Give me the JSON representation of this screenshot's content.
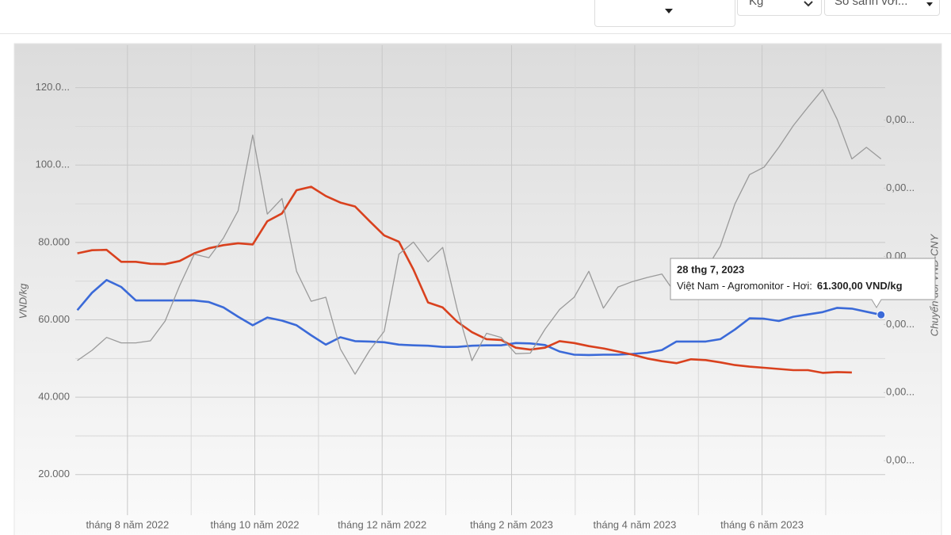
{
  "controls": {
    "unit": "Kg",
    "compare": "So sánh với..."
  },
  "chart_data": {
    "type": "line",
    "ylabel": "VND/kg",
    "y2label": "Chuyển đổi VND-CNY",
    "x": [
      "2022-07-08",
      "2022-07-15",
      "2022-07-22",
      "2022-07-29",
      "2022-08-05",
      "2022-08-12",
      "2022-08-19",
      "2022-08-26",
      "2022-09-02",
      "2022-09-09",
      "2022-09-16",
      "2022-09-23",
      "2022-09-30",
      "2022-10-07",
      "2022-10-14",
      "2022-10-21",
      "2022-10-28",
      "2022-11-04",
      "2022-11-11",
      "2022-11-18",
      "2022-11-25",
      "2022-12-02",
      "2022-12-09",
      "2022-12-16",
      "2022-12-23",
      "2022-12-30",
      "2023-01-06",
      "2023-01-13",
      "2023-01-20",
      "2023-01-27",
      "2023-02-03",
      "2023-02-10",
      "2023-02-17",
      "2023-02-24",
      "2023-03-03",
      "2023-03-10",
      "2023-03-17",
      "2023-03-24",
      "2023-03-31",
      "2023-04-07",
      "2023-04-14",
      "2023-04-21",
      "2023-04-28",
      "2023-05-05",
      "2023-05-12",
      "2023-05-19",
      "2023-05-26",
      "2023-06-02",
      "2023-06-09",
      "2023-06-16",
      "2023-06-23",
      "2023-06-30",
      "2023-07-07",
      "2023-07-14",
      "2023-07-21",
      "2023-07-28"
    ],
    "series": [
      {
        "name": "Việt Nam - Agromonitor - Hơi",
        "color": "#3b6ad8",
        "values": [
          62500,
          67000,
          70300,
          68500,
          65000,
          65000,
          65000,
          65000,
          65000,
          64600,
          63200,
          60800,
          58600,
          60600,
          59800,
          58600,
          56000,
          53600,
          55500,
          54500,
          54400,
          54200,
          53600,
          53400,
          53300,
          53000,
          53000,
          53300,
          53400,
          53400,
          54000,
          53900,
          53500,
          51800,
          51000,
          50900,
          51000,
          51000,
          51200,
          51500,
          52200,
          54400,
          54400,
          54400,
          55000,
          57500,
          60400,
          60300,
          59700,
          60800,
          61400,
          62000,
          63100,
          62900,
          62100,
          61300
        ]
      },
      {
        "color": "#d9411e",
        "values": [
          77200,
          78000,
          78100,
          75000,
          75000,
          74500,
          74400,
          75200,
          77200,
          78500,
          79300,
          79800,
          79500,
          85500,
          87500,
          93500,
          94400,
          92000,
          90300,
          89300,
          85500,
          81800,
          80200,
          73000,
          64500,
          63200,
          59500,
          56800,
          55000,
          54800,
          52800,
          52300,
          52800,
          54500,
          54000,
          53200,
          52600,
          51800,
          51000,
          50000,
          49300,
          48800,
          49800,
          49600,
          49000,
          48300,
          47900,
          47600,
          47300,
          47000,
          47000,
          46300,
          46500,
          46400,
          null,
          null
        ]
      },
      {
        "color": "#9a9a9a",
        "axis": "y2",
        "values": [
          0.00247,
          0.00262,
          0.00281,
          0.00273,
          0.00273,
          0.00276,
          0.00305,
          0.00357,
          0.00403,
          0.00398,
          0.00427,
          0.00467,
          0.00578,
          0.00462,
          0.00485,
          0.00378,
          0.00334,
          0.0034,
          0.00264,
          0.00227,
          0.00262,
          0.0029,
          0.00403,
          0.00421,
          0.00392,
          0.00413,
          0.00322,
          0.00247,
          0.00287,
          0.00281,
          0.00257,
          0.00258,
          0.00293,
          0.00322,
          0.0034,
          0.00378,
          0.00324,
          0.00355,
          0.00363,
          0.00369,
          0.00374,
          0.00343,
          0.00355,
          0.0038,
          0.00415,
          0.00477,
          0.0052,
          0.00531,
          0.0056,
          0.00592,
          0.00619,
          0.00645,
          0.00601,
          0.00543,
          0.0056,
          0.00543
        ]
      }
    ],
    "xlim": [
      "2022-07-07",
      "2023-07-30"
    ],
    "xticks": [
      {
        "value": "2022-08-01",
        "label": "tháng 8 năm 2022"
      },
      {
        "value": "2022-10-01",
        "label": "tháng 10 năm 2022"
      },
      {
        "value": "2022-12-01",
        "label": "tháng 12 năm 2022"
      },
      {
        "value": "2023-02-01",
        "label": "tháng 2 năm 2023"
      },
      {
        "value": "2023-04-01",
        "label": "tháng 4 năm 2023"
      },
      {
        "value": "2023-06-01",
        "label": "tháng 6 năm 2023"
      }
    ],
    "ylim": [
      9500,
      131000
    ],
    "yticks": [
      {
        "value": 20000,
        "label": "20.000"
      },
      {
        "value": 40000,
        "label": "40.000"
      },
      {
        "value": 60000,
        "label": "60.000"
      },
      {
        "value": 80000,
        "label": "80.000"
      },
      {
        "value": 100000,
        "label": "100.0..."
      },
      {
        "value": 120000,
        "label": "120.0..."
      }
    ],
    "y2lim": [
      0.0002,
      0.0071
    ],
    "y2ticks": [
      {
        "value": 0.001,
        "label": "0,00..."
      },
      {
        "value": 0.002,
        "label": "0,00..."
      },
      {
        "value": 0.003,
        "label": "0,00..."
      },
      {
        "value": 0.004,
        "label": "0,00..."
      },
      {
        "value": 0.005,
        "label": "0,00..."
      },
      {
        "value": 0.006,
        "label": "0,00..."
      }
    ],
    "grid": true,
    "tooltip": {
      "title": "28 thg 7, 2023",
      "series_label": "Việt Nam - Agromonitor - Hơi:",
      "value_label": "61.300,00 VND/kg"
    }
  }
}
